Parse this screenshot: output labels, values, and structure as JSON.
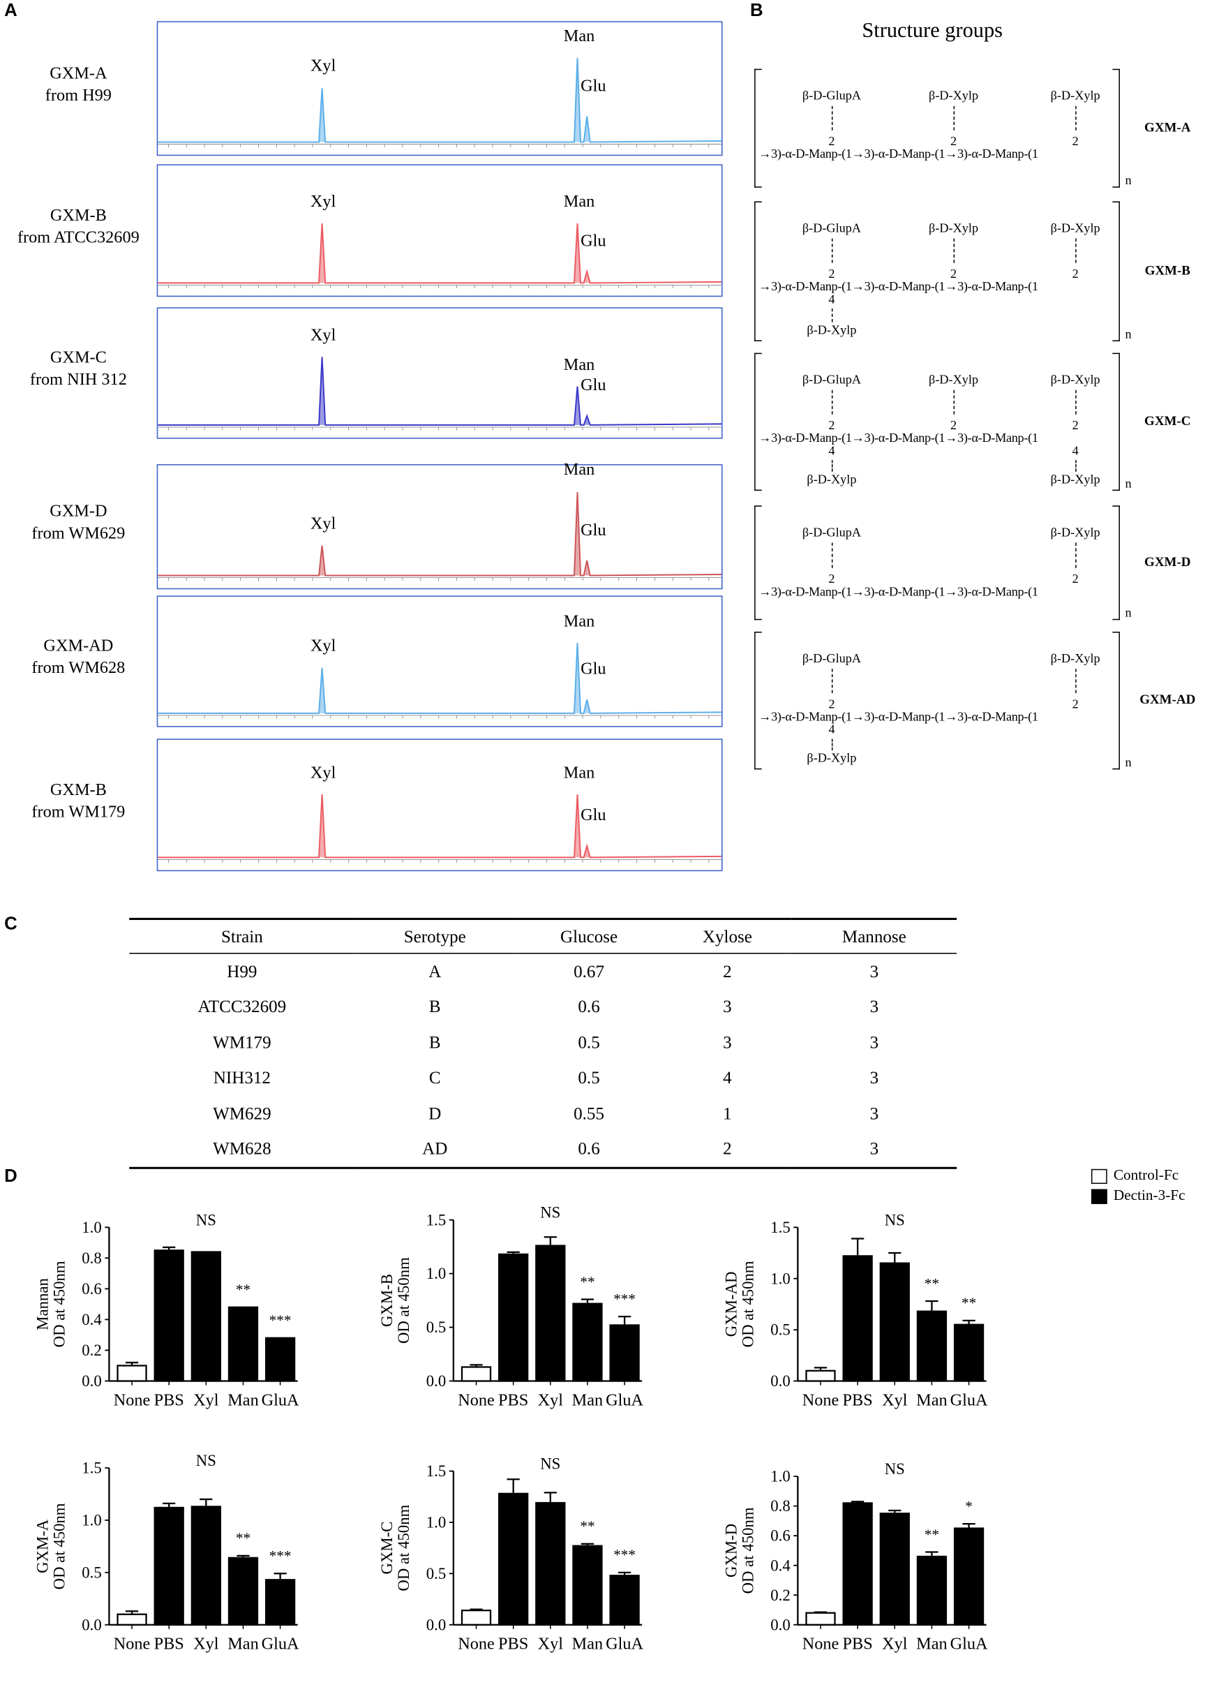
{
  "panels": {
    "A": "A",
    "B": "B",
    "C": "C",
    "D": "D"
  },
  "panel_a": {
    "peak_labels": {
      "xyl": "Xyl",
      "man": "Man",
      "glu": "Glu"
    },
    "samples": [
      {
        "name": "GXM-A",
        "source": "from H99",
        "color": "#5aaeea",
        "relative_peaks": {
          "Xyl": 0.46,
          "Man": 0.72,
          "Glu": 0.22
        }
      },
      {
        "name": "GXM-B",
        "source": "from ATCC32609",
        "color": "#ec5b62",
        "relative_peaks": {
          "Xyl": 0.52,
          "Man": 0.52,
          "Glu": 0.1
        }
      },
      {
        "name": "GXM-C",
        "source": "from NIH 312",
        "color": "#3a38c8",
        "relative_peaks": {
          "Xyl": 0.6,
          "Man": 0.34,
          "Glu": 0.08
        }
      },
      {
        "name": "GXM-D",
        "source": "from WM629",
        "color": "#cc5558",
        "relative_peaks": {
          "Xyl": 0.28,
          "Man": 0.78,
          "Glu": 0.14
        }
      },
      {
        "name": "GXM-AD",
        "source": "from WM628",
        "color": "#5aaeea",
        "relative_peaks": {
          "Xyl": 0.4,
          "Man": 0.62,
          "Glu": 0.12
        }
      },
      {
        "name": "GXM-B",
        "source": "from WM179",
        "color": "#ec5b62",
        "relative_peaks": {
          "Xyl": 0.55,
          "Man": 0.55,
          "Glu": 0.1
        }
      }
    ]
  },
  "panel_b": {
    "title": "Structure groups",
    "chain": "→3)-α-D-Manp-(1→3)-α-D-Manp-(1→3)-α-D-Manp-(1",
    "n": "n",
    "groups": [
      {
        "name": "GXM-A",
        "top_branches": [
          "β-D-GlupA",
          "β-D-Xylp",
          "β-D-Xylp"
        ],
        "bottom_branches": [
          "",
          "",
          ""
        ]
      },
      {
        "name": "GXM-B",
        "top_branches": [
          "β-D-GlupA",
          "β-D-Xylp",
          "β-D-Xylp"
        ],
        "bottom_branches": [
          "β-D-Xylp",
          "",
          ""
        ]
      },
      {
        "name": "GXM-C",
        "top_branches": [
          "β-D-GlupA",
          "β-D-Xylp",
          "β-D-Xylp"
        ],
        "bottom_branches": [
          "β-D-Xylp",
          "",
          "β-D-Xylp"
        ]
      },
      {
        "name": "GXM-D",
        "top_branches": [
          "β-D-GlupA",
          "",
          "β-D-Xylp"
        ],
        "bottom_branches": [
          "",
          "",
          ""
        ]
      },
      {
        "name": "GXM-AD",
        "top_branches": [
          "β-D-GlupA",
          "",
          "β-D-Xylp"
        ],
        "bottom_branches": [
          "β-D-Xylp",
          "",
          ""
        ]
      }
    ],
    "pos2": "2",
    "pos4": "4"
  },
  "panel_c": {
    "headers": [
      "Strain",
      "Serotype",
      "Glucose",
      "Xylose",
      "Mannose"
    ],
    "rows": [
      [
        "H99",
        "A",
        "0.67",
        "2",
        "3"
      ],
      [
        "ATCC32609",
        "B",
        "0.6",
        "3",
        "3"
      ],
      [
        "WM179",
        "B",
        "0.5",
        "3",
        "3"
      ],
      [
        "NIH312",
        "C",
        "0.5",
        "4",
        "3"
      ],
      [
        "WM629",
        "D",
        "0.55",
        "1",
        "3"
      ],
      [
        "WM628",
        "AD",
        "0.6",
        "2",
        "3"
      ]
    ]
  },
  "legend": {
    "control": "Control-Fc",
    "dectin": "Dectin-3-Fc"
  },
  "chart_data": [
    {
      "type": "bar",
      "ylabel": "Mannan",
      "ylabel2": "OD at 450nm",
      "categories": [
        "None",
        "PBS",
        "Xyl",
        "Man",
        "GluA"
      ],
      "values": [
        0.1,
        0.85,
        0.84,
        0.48,
        0.28
      ],
      "errors": [
        0.02,
        0.02,
        0,
        0,
        0
      ],
      "series": [
        "Control-Fc",
        "Dectin-3-Fc",
        "Dectin-3-Fc",
        "Dectin-3-Fc",
        "Dectin-3-Fc"
      ],
      "annotations": [
        "",
        "",
        "NS",
        "**",
        "***"
      ],
      "ylim": [
        0,
        1.0
      ],
      "yticks": [
        "0.0",
        "0.2",
        "0.4",
        "0.6",
        "0.8",
        "1.0"
      ]
    },
    {
      "type": "bar",
      "ylabel": "GXM-B",
      "ylabel2": "OD at 450nm",
      "categories": [
        "None",
        "PBS",
        "Xyl",
        "Man",
        "GluA"
      ],
      "values": [
        0.13,
        1.18,
        1.26,
        0.72,
        0.52
      ],
      "errors": [
        0.02,
        0.02,
        0.08,
        0.04,
        0.08
      ],
      "series": [
        "Control-Fc",
        "Dectin-3-Fc",
        "Dectin-3-Fc",
        "Dectin-3-Fc",
        "Dectin-3-Fc"
      ],
      "annotations": [
        "",
        "",
        "NS",
        "**",
        "***"
      ],
      "ylim": [
        0,
        1.5
      ],
      "yticks": [
        "0.0",
        "0.5",
        "1.0",
        "1.5"
      ]
    },
    {
      "type": "bar",
      "ylabel": "GXM-AD",
      "ylabel2": "OD at 450nm",
      "categories": [
        "None",
        "PBS",
        "Xyl",
        "Man",
        "GluA"
      ],
      "values": [
        0.1,
        1.22,
        1.15,
        0.68,
        0.55
      ],
      "errors": [
        0.03,
        0.17,
        0.1,
        0.1,
        0.04
      ],
      "series": [
        "Control-Fc",
        "Dectin-3-Fc",
        "Dectin-3-Fc",
        "Dectin-3-Fc",
        "Dectin-3-Fc"
      ],
      "annotations": [
        "",
        "",
        "NS",
        "**",
        "**"
      ],
      "ylim": [
        0,
        1.5
      ],
      "yticks": [
        "0.0",
        "0.5",
        "1.0",
        "1.5"
      ]
    },
    {
      "type": "bar",
      "ylabel": "GXM-A",
      "ylabel2": "OD at 450nm",
      "categories": [
        "None",
        "PBS",
        "Xyl",
        "Man",
        "GluA"
      ],
      "values": [
        0.1,
        1.12,
        1.13,
        0.64,
        0.43
      ],
      "errors": [
        0.03,
        0.04,
        0.07,
        0.02,
        0.06
      ],
      "series": [
        "Control-Fc",
        "Dectin-3-Fc",
        "Dectin-3-Fc",
        "Dectin-3-Fc",
        "Dectin-3-Fc"
      ],
      "annotations": [
        "",
        "",
        "NS",
        "**",
        "***"
      ],
      "ylim": [
        0,
        1.5
      ],
      "yticks": [
        "0.0",
        "0.5",
        "1.0",
        "1.5"
      ]
    },
    {
      "type": "bar",
      "ylabel": "GXM-C",
      "ylabel2": "OD at 450nm",
      "categories": [
        "None",
        "PBS",
        "Xyl",
        "Man",
        "GluA"
      ],
      "values": [
        0.14,
        1.28,
        1.19,
        0.77,
        0.48
      ],
      "errors": [
        0.01,
        0.14,
        0.1,
        0.02,
        0.03
      ],
      "series": [
        "Control-Fc",
        "Dectin-3-Fc",
        "Dectin-3-Fc",
        "Dectin-3-Fc",
        "Dectin-3-Fc"
      ],
      "annotations": [
        "",
        "",
        "NS",
        "**",
        "***"
      ],
      "ylim": [
        0,
        1.5
      ],
      "yticks": [
        "0.0",
        "0.5",
        "1.0",
        "1.5"
      ]
    },
    {
      "type": "bar",
      "ylabel": "GXM-D",
      "ylabel2": "OD at 450nm",
      "categories": [
        "None",
        "PBS",
        "Xyl",
        "Man",
        "GluA"
      ],
      "values": [
        0.08,
        0.82,
        0.75,
        0.46,
        0.65
      ],
      "errors": [
        0.005,
        0.01,
        0.02,
        0.03,
        0.03
      ],
      "series": [
        "Control-Fc",
        "Dectin-3-Fc",
        "Dectin-3-Fc",
        "Dectin-3-Fc",
        "Dectin-3-Fc"
      ],
      "annotations": [
        "",
        "",
        "NS",
        "**",
        "*"
      ],
      "ylim": [
        0,
        1.0
      ],
      "yticks": [
        "0.0",
        "0.2",
        "0.4",
        "0.6",
        "0.8",
        "1.0"
      ]
    }
  ]
}
